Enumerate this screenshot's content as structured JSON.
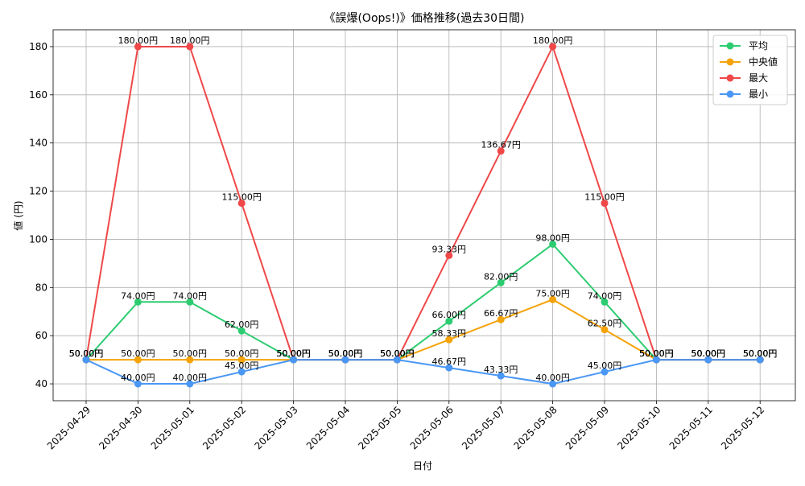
{
  "chart_data": {
    "type": "line",
    "title": "《誤爆(Oops!)》価格推移(過去30日間)",
    "xlabel": "日付",
    "ylabel": "値 (円)",
    "ylim": [
      33,
      187
    ],
    "yticks": [
      40,
      60,
      80,
      100,
      120,
      140,
      160,
      180
    ],
    "grid": true,
    "legend_position": "top-right",
    "categories": [
      "2025-04-29",
      "2025-04-30",
      "2025-05-01",
      "2025-05-02",
      "2025-05-03",
      "2025-05-04",
      "2025-05-05",
      "2025-05-06",
      "2025-05-07",
      "2025-05-08",
      "2025-05-09",
      "2025-05-10",
      "2025-05-11",
      "2025-05-12"
    ],
    "series": [
      {
        "name": "平均",
        "color": "#2ecc71",
        "values": [
          50,
          74,
          74,
          62,
          50,
          50,
          50,
          66,
          82,
          98,
          74,
          50,
          50,
          50
        ],
        "labels": [
          "50.00円",
          "74.00円",
          "74.00円",
          "62.00円",
          "50.00円",
          "50.00円",
          "50.00円",
          "66.00円",
          "82.00円",
          "98.00円",
          "74.00円",
          "50.00円",
          "50.00円",
          "50.00円"
        ]
      },
      {
        "name": "中央値",
        "color": "#f5a30a",
        "values": [
          50,
          50,
          50,
          50,
          50,
          50,
          50,
          58.33,
          66.67,
          75,
          62.5,
          50,
          50,
          50
        ],
        "labels": [
          "50.00円",
          "50.00円",
          "50.00円",
          "50.00円",
          "50.00円",
          "50.00円",
          "50.00円",
          "58.33円",
          "66.67円",
          "75.00円",
          "62.50円",
          "50.00円",
          "50.00円",
          "50.00円"
        ]
      },
      {
        "name": "最大",
        "color": "#f04848",
        "values": [
          50,
          180,
          180,
          115,
          50,
          50,
          50,
          93.33,
          136.67,
          180,
          115,
          50,
          50,
          50
        ],
        "labels": [
          "50.00円",
          "180.00円",
          "180.00円",
          "115.00円",
          "50.00円",
          "50.00円",
          "50.00円",
          "93.33円",
          "136.67円",
          "180.00円",
          "115.00円",
          "50.00円",
          "50.00円",
          "50.00円"
        ]
      },
      {
        "name": "最小",
        "color": "#4a97f5",
        "values": [
          50,
          40,
          40,
          45,
          50,
          50,
          50,
          46.67,
          43.33,
          40,
          45,
          50,
          50,
          50
        ],
        "labels": [
          "50.00円",
          "40.00円",
          "40.00円",
          "45.00円",
          "50.00円",
          "50.00円",
          "50.00円",
          "46.67円",
          "43.33円",
          "40.00円",
          "45.00円",
          "50.00円",
          "50.00円",
          "50.00円"
        ]
      }
    ]
  }
}
